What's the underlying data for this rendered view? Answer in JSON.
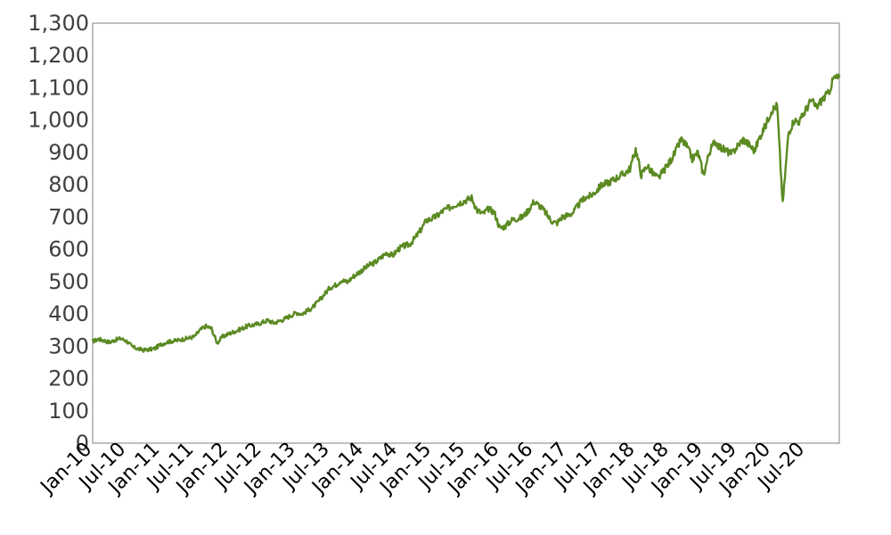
{
  "chart_data": {
    "type": "line",
    "title": "",
    "xlabel": "",
    "ylabel": "",
    "x_range": [
      "2010-01",
      "2020-12"
    ],
    "ylim": [
      0,
      1300
    ],
    "yticks": [
      0,
      100,
      200,
      300,
      400,
      500,
      600,
      700,
      800,
      900,
      1000,
      1100,
      1200,
      1300
    ],
    "ytick_labels": [
      "0",
      "100",
      "200",
      "300",
      "400",
      "500",
      "600",
      "700",
      "800",
      "900",
      "1,000",
      "1,100",
      "1,200",
      "1,300"
    ],
    "xtick_labels": [
      "Jan-10",
      "Jul-10",
      "Jan-11",
      "Jul-11",
      "Jan-12",
      "Jul-12",
      "Jan-13",
      "Jul-13",
      "Jan-14",
      "Jul-14",
      "Jan-15",
      "Jul-15",
      "Jan-16",
      "Jul-16",
      "Jan-17",
      "Jul-17",
      "Jan-18",
      "Jul-18",
      "Jan-19",
      "Jul-19",
      "Jan-20",
      "Jul-20"
    ],
    "grid": false,
    "legend": "none",
    "line_color": "#5b8a22",
    "series": [
      {
        "x": [
          "2010-01",
          "2010-02",
          "2010-03",
          "2010-04",
          "2010-05",
          "2010-06",
          "2010-07",
          "2010-08",
          "2010-09",
          "2010-10",
          "2010-11",
          "2010-12",
          "2011-01",
          "2011-02",
          "2011-03",
          "2011-04",
          "2011-05",
          "2011-06",
          "2011-07",
          "2011-08",
          "2011-09",
          "2011-10",
          "2011-11",
          "2011-12",
          "2012-01",
          "2012-02",
          "2012-03",
          "2012-04",
          "2012-05",
          "2012-06",
          "2012-07",
          "2012-08",
          "2012-09",
          "2012-10",
          "2012-11",
          "2012-12",
          "2013-01",
          "2013-02",
          "2013-03",
          "2013-04",
          "2013-05",
          "2013-06",
          "2013-07",
          "2013-08",
          "2013-09",
          "2013-10",
          "2013-11",
          "2013-12",
          "2014-01",
          "2014-02",
          "2014-03",
          "2014-04",
          "2014-05",
          "2014-06",
          "2014-07",
          "2014-08",
          "2014-09",
          "2014-10",
          "2014-11",
          "2014-12",
          "2015-01",
          "2015-02",
          "2015-03",
          "2015-04",
          "2015-05",
          "2015-06",
          "2015-07",
          "2015-08",
          "2015-09",
          "2015-10",
          "2015-11",
          "2015-12",
          "2016-01",
          "2016-02",
          "2016-03",
          "2016-04",
          "2016-05",
          "2016-06",
          "2016-07",
          "2016-08",
          "2016-09",
          "2016-10",
          "2016-11",
          "2016-12",
          "2017-01",
          "2017-02",
          "2017-03",
          "2017-04",
          "2017-05",
          "2017-06",
          "2017-07",
          "2017-08",
          "2017-09",
          "2017-10",
          "2017-11",
          "2017-12",
          "2018-01",
          "2018-02",
          "2018-03",
          "2018-04",
          "2018-05",
          "2018-06",
          "2018-07",
          "2018-08",
          "2018-09",
          "2018-10",
          "2018-11",
          "2018-12",
          "2019-01",
          "2019-02",
          "2019-03",
          "2019-04",
          "2019-05",
          "2019-06",
          "2019-07",
          "2019-08",
          "2019-09",
          "2019-10",
          "2019-11",
          "2019-12",
          "2020-01",
          "2020-02",
          "2020-03",
          "2020-04",
          "2020-05",
          "2020-06",
          "2020-07",
          "2020-08",
          "2020-09",
          "2020-10",
          "2020-11",
          "2020-12"
        ],
        "y": [
          315,
          322,
          318,
          312,
          320,
          324,
          316,
          298,
          292,
          288,
          290,
          293,
          305,
          312,
          316,
          318,
          322,
          325,
          330,
          350,
          362,
          355,
          310,
          330,
          338,
          345,
          352,
          360,
          365,
          368,
          374,
          380,
          372,
          378,
          385,
          395,
          404,
          400,
          410,
          422,
          440,
          462,
          482,
          490,
          505,
          498,
          515,
          528,
          540,
          552,
          560,
          575,
          590,
          580,
          600,
          610,
          615,
          635,
          660,
          690,
          695,
          705,
          720,
          728,
          738,
          745,
          752,
          760,
          720,
          710,
          725,
          715,
          665,
          672,
          690,
          695,
          700,
          720,
          748,
          735,
          715,
          690,
          680,
          700,
          705,
          715,
          740,
          760,
          765,
          780,
          800,
          805,
          815,
          825,
          835,
          850,
          910,
          830,
          860,
          835,
          820,
          845,
          870,
          900,
          940,
          920,
          880,
          900,
          830,
          900,
          935,
          915,
          905,
          895,
          920,
          940,
          925,
          905,
          950,
          985,
          1030,
          1045,
          740,
          960,
          1000,
          995,
          1030,
          1060,
          1040,
          1065,
          1080,
          1130
        ]
      }
    ]
  }
}
